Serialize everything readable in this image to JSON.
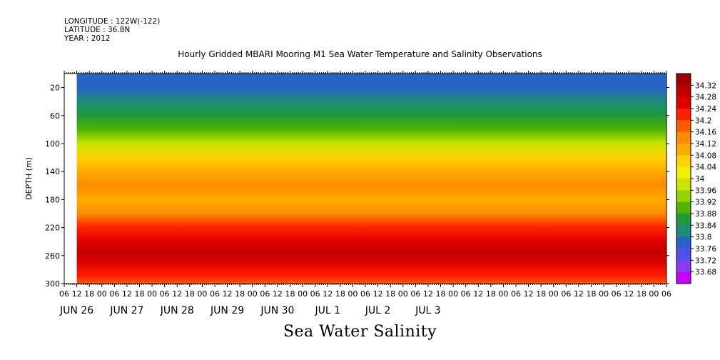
{
  "header": {
    "longitude": "LONGITUDE : 122W(-122)",
    "latitude": "LATITUDE : 36.8N",
    "year": "YEAR : 2012"
  },
  "chart_data": {
    "type": "heatmap",
    "title": "Hourly Gridded MBARI Mooring M1 Sea Water Temperature and Salinity Observations",
    "xlabel": "Sea Water Salinity",
    "ylabel": "DEPTH (m)",
    "y_ticks": [
      20,
      60,
      100,
      140,
      180,
      220,
      260,
      300
    ],
    "y_range": [
      300,
      0
    ],
    "x_hour_ticks": [
      "06",
      "12",
      "18",
      "00",
      "06",
      "12",
      "18",
      "00",
      "06",
      "12",
      "18",
      "00",
      "06",
      "12",
      "18",
      "00",
      "06",
      "12",
      "18",
      "00",
      "06",
      "12",
      "18",
      "00",
      "06",
      "12",
      "18",
      "00",
      "06",
      "12",
      "18",
      "00",
      "06",
      "12",
      "18",
      "00",
      "06",
      "12",
      "18",
      "00",
      "06",
      "12",
      "18",
      "00",
      "06",
      "12",
      "18",
      "00",
      "06"
    ],
    "x_day_labels": [
      {
        "label": "JUN 26",
        "day_index": 0
      },
      {
        "label": "JUN 27",
        "day_index": 1
      },
      {
        "label": "JUN 28",
        "day_index": 2
      },
      {
        "label": "JUN 29",
        "day_index": 3
      },
      {
        "label": "JUN 30",
        "day_index": 4
      },
      {
        "label": "JUL  1",
        "day_index": 5
      },
      {
        "label": "JUL  2",
        "day_index": 6
      },
      {
        "label": "JUL  3",
        "day_index": 7
      }
    ],
    "colorbar_levels": [
      34.32,
      34.28,
      34.24,
      34.2,
      34.16,
      34.12,
      34.08,
      34.04,
      34,
      33.96,
      33.92,
      33.88,
      33.84,
      33.8,
      33.76,
      33.72,
      33.68
    ],
    "colorbar_colors": [
      "#a00000",
      "#c00000",
      "#e00000",
      "#ff2000",
      "#ff5a00",
      "#ff8c00",
      "#ffaa00",
      "#ffd200",
      "#f0f000",
      "#c8e600",
      "#96d200",
      "#50b400",
      "#1e9a3c",
      "#1e8c78",
      "#2864c8",
      "#5050f0",
      "#8c3cf0",
      "#c800ff"
    ],
    "depth_profile": [
      {
        "depth": 10,
        "salinity": 33.76
      },
      {
        "depth": 20,
        "salinity": 33.78
      },
      {
        "depth": 40,
        "salinity": 33.82
      },
      {
        "depth": 60,
        "salinity": 33.86
      },
      {
        "depth": 80,
        "salinity": 33.9
      },
      {
        "depth": 100,
        "salinity": 33.96
      },
      {
        "depth": 120,
        "salinity": 34.04
      },
      {
        "depth": 140,
        "salinity": 34.1
      },
      {
        "depth": 160,
        "salinity": 34.13
      },
      {
        "depth": 180,
        "salinity": 34.1
      },
      {
        "depth": 200,
        "salinity": 34.13
      },
      {
        "depth": 220,
        "salinity": 34.2
      },
      {
        "depth": 240,
        "salinity": 34.26
      },
      {
        "depth": 255,
        "salinity": 34.29
      },
      {
        "depth": 270,
        "salinity": 34.25
      },
      {
        "depth": 290,
        "salinity": 34.2
      },
      {
        "depth": 300,
        "salinity": 34.18
      }
    ],
    "missing_data": "blank before 12Z JUN 26"
  }
}
